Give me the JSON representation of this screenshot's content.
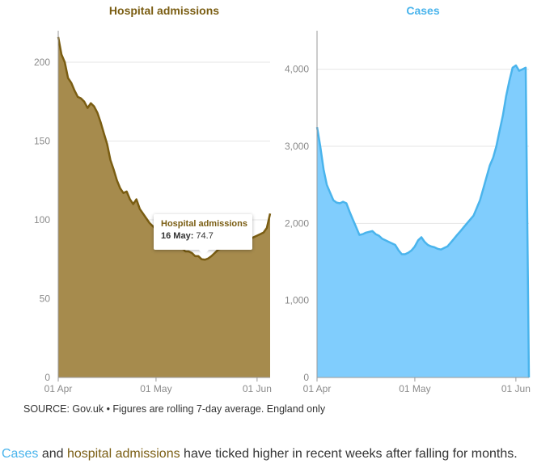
{
  "chart_data": [
    {
      "type": "area",
      "title": "Hospital admissions",
      "color": "#7a5d12",
      "fill": "#a68b4d",
      "xlim": [
        0,
        65
      ],
      "ylim": [
        0,
        220
      ],
      "yticks": [
        0,
        50,
        100,
        150,
        200
      ],
      "ytick_labels": [
        "0",
        "50",
        "100",
        "150",
        "200"
      ],
      "xticks": [
        0,
        30,
        61
      ],
      "xtick_labels": [
        "01 Apr",
        "01 May",
        "01 Jun"
      ],
      "x": [
        0,
        1,
        2,
        3,
        4,
        5,
        6,
        7,
        8,
        9,
        10,
        11,
        12,
        13,
        14,
        15,
        16,
        17,
        18,
        19,
        20,
        21,
        22,
        23,
        24,
        25,
        26,
        27,
        28,
        29,
        30,
        31,
        32,
        33,
        34,
        35,
        36,
        37,
        38,
        39,
        40,
        41,
        42,
        43,
        44,
        45,
        46,
        47,
        48,
        49,
        50,
        51,
        52,
        53,
        54,
        55,
        56,
        57,
        58,
        59,
        60,
        61,
        62,
        63,
        64,
        65
      ],
      "values": [
        216,
        205,
        200,
        190,
        187,
        182,
        178,
        177,
        175,
        171,
        174,
        172,
        168,
        162,
        155,
        148,
        138,
        132,
        125,
        120,
        117,
        118,
        113,
        110,
        113,
        107,
        104,
        101,
        98,
        96,
        94,
        92,
        90,
        89,
        87,
        86,
        86,
        83,
        82,
        80,
        80,
        79,
        77,
        77,
        75,
        74.7,
        75.5,
        77,
        79,
        81,
        82,
        83,
        84,
        84,
        85,
        85,
        86,
        87,
        87,
        88,
        89,
        90,
        91,
        92,
        95,
        104
      ]
    },
    {
      "type": "area",
      "title": "Cases",
      "color": "#4ab4ec",
      "fill": "#80cdfd",
      "xlim": [
        0,
        65
      ],
      "ylim": [
        0,
        4500
      ],
      "yticks": [
        0,
        1000,
        2000,
        3000,
        4000
      ],
      "ytick_labels": [
        "0",
        "1,000",
        "2,000",
        "3,000",
        "4,000"
      ],
      "xticks": [
        0,
        30,
        61
      ],
      "xtick_labels": [
        "01 Apr",
        "01 May",
        "01 Jun"
      ],
      "x": [
        0,
        1,
        2,
        3,
        4,
        5,
        6,
        7,
        8,
        9,
        10,
        11,
        12,
        13,
        14,
        15,
        16,
        17,
        18,
        19,
        20,
        21,
        22,
        23,
        24,
        25,
        26,
        27,
        28,
        29,
        30,
        31,
        32,
        33,
        34,
        35,
        36,
        37,
        38,
        39,
        40,
        41,
        42,
        43,
        44,
        45,
        46,
        47,
        48,
        49,
        50,
        51,
        52,
        53,
        54,
        55,
        56,
        57,
        58,
        59,
        60,
        61,
        62,
        63,
        64,
        65
      ],
      "values": [
        3250,
        3000,
        2700,
        2500,
        2400,
        2300,
        2270,
        2260,
        2280,
        2260,
        2150,
        2050,
        1950,
        1850,
        1860,
        1880,
        1890,
        1900,
        1860,
        1840,
        1800,
        1780,
        1760,
        1740,
        1720,
        1650,
        1600,
        1600,
        1620,
        1650,
        1700,
        1780,
        1820,
        1760,
        1720,
        1700,
        1690,
        1670,
        1660,
        1680,
        1700,
        1750,
        1800,
        1850,
        1900,
        1950,
        2000,
        2050,
        2100,
        2200,
        2300,
        2450,
        2600,
        2750,
        2850,
        3000,
        3200,
        3400,
        3650,
        3850,
        4020,
        4050,
        3980,
        4000,
        4020,
        0
      ]
    }
  ],
  "tooltip": {
    "title": "Hospital admissions",
    "date": "16 May:",
    "value": "74.7"
  },
  "source": "SOURCE: Gov.uk • Figures are rolling 7-day average. England only",
  "caption": {
    "cases_word": "Cases",
    "and": "and",
    "hosp_word": "hospital admissions",
    "rest": "have ticked higher in recent weeks after falling for months."
  }
}
